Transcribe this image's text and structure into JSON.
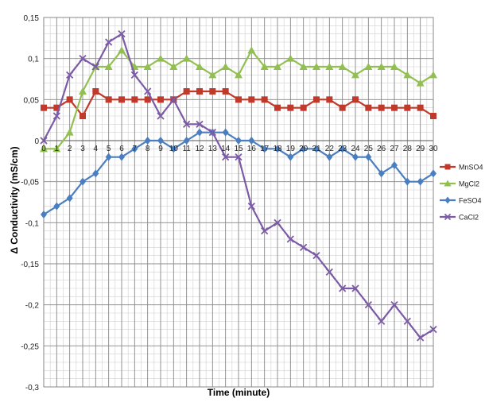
{
  "chart_data": {
    "type": "line",
    "title": "",
    "xlabel": "Time (minute)",
    "ylabel": "Δ Conductivity (mS/cm)",
    "x": [
      0,
      1,
      2,
      3,
      4,
      5,
      6,
      7,
      8,
      9,
      10,
      11,
      12,
      13,
      14,
      15,
      16,
      17,
      18,
      19,
      20,
      21,
      22,
      23,
      24,
      25,
      26,
      27,
      28,
      29,
      30
    ],
    "x_tick_labels": [
      "0",
      "1",
      "2",
      "3",
      "4",
      "5",
      "6",
      "7",
      "8",
      "9",
      "10",
      "11",
      "12",
      "13",
      "14",
      "15",
      "16",
      "17",
      "18",
      "19",
      "20",
      "21",
      "22",
      "23",
      "24",
      "25",
      "26",
      "27",
      "28",
      "29",
      "30"
    ],
    "ylim": [
      -0.3,
      0.15
    ],
    "y_ticks": [
      0.15,
      0.1,
      0.05,
      0,
      -0.05,
      -0.1,
      -0.15,
      -0.2,
      -0.25,
      -0.3
    ],
    "y_tick_labels": [
      "0,15",
      "0,1",
      "0,05",
      "0",
      "-0,05",
      "-0,1",
      "-0,15",
      "-0,2",
      "-0,25",
      "-0,3"
    ],
    "grid": true,
    "legend_position": "right",
    "series": [
      {
        "name": "MnSO4",
        "color": "#c0392b",
        "marker": "square",
        "values": [
          0.04,
          0.04,
          0.05,
          0.03,
          0.06,
          0.05,
          0.05,
          0.05,
          0.05,
          0.05,
          0.05,
          0.06,
          0.06,
          0.06,
          0.06,
          0.05,
          0.05,
          0.05,
          0.04,
          0.04,
          0.04,
          0.05,
          0.05,
          0.04,
          0.05,
          0.04,
          0.04,
          0.04,
          0.04,
          0.04,
          0.03
        ]
      },
      {
        "name": "MgCl2",
        "color": "#92c050",
        "marker": "triangle",
        "values": [
          -0.01,
          -0.01,
          0.01,
          0.06,
          0.09,
          0.09,
          0.11,
          0.09,
          0.09,
          0.1,
          0.09,
          0.1,
          0.09,
          0.08,
          0.09,
          0.08,
          0.11,
          0.09,
          0.09,
          0.1,
          0.09,
          0.09,
          0.09,
          0.09,
          0.08,
          0.09,
          0.09,
          0.09,
          0.08,
          0.07,
          0.08
        ]
      },
      {
        "name": "FeSO4",
        "color": "#4a7ec0",
        "marker": "diamond",
        "values": [
          -0.09,
          -0.08,
          -0.07,
          -0.05,
          -0.04,
          -0.02,
          -0.02,
          -0.01,
          0.0,
          0.0,
          -0.01,
          0.0,
          0.01,
          0.01,
          0.01,
          0.0,
          0.0,
          -0.01,
          -0.01,
          -0.02,
          -0.01,
          -0.01,
          -0.02,
          -0.01,
          -0.02,
          -0.02,
          -0.04,
          -0.03,
          -0.05,
          -0.05,
          -0.04
        ]
      },
      {
        "name": "CaCl2",
        "color": "#7b5aa6",
        "marker": "x",
        "values": [
          0.0,
          0.03,
          0.08,
          0.1,
          0.09,
          0.12,
          0.13,
          0.08,
          0.06,
          0.03,
          0.05,
          0.02,
          0.02,
          0.01,
          -0.02,
          -0.02,
          -0.08,
          -0.11,
          -0.1,
          -0.12,
          -0.13,
          -0.14,
          -0.16,
          -0.18,
          -0.18,
          -0.2,
          -0.22,
          -0.2,
          -0.22,
          -0.24,
          -0.23
        ]
      }
    ]
  }
}
